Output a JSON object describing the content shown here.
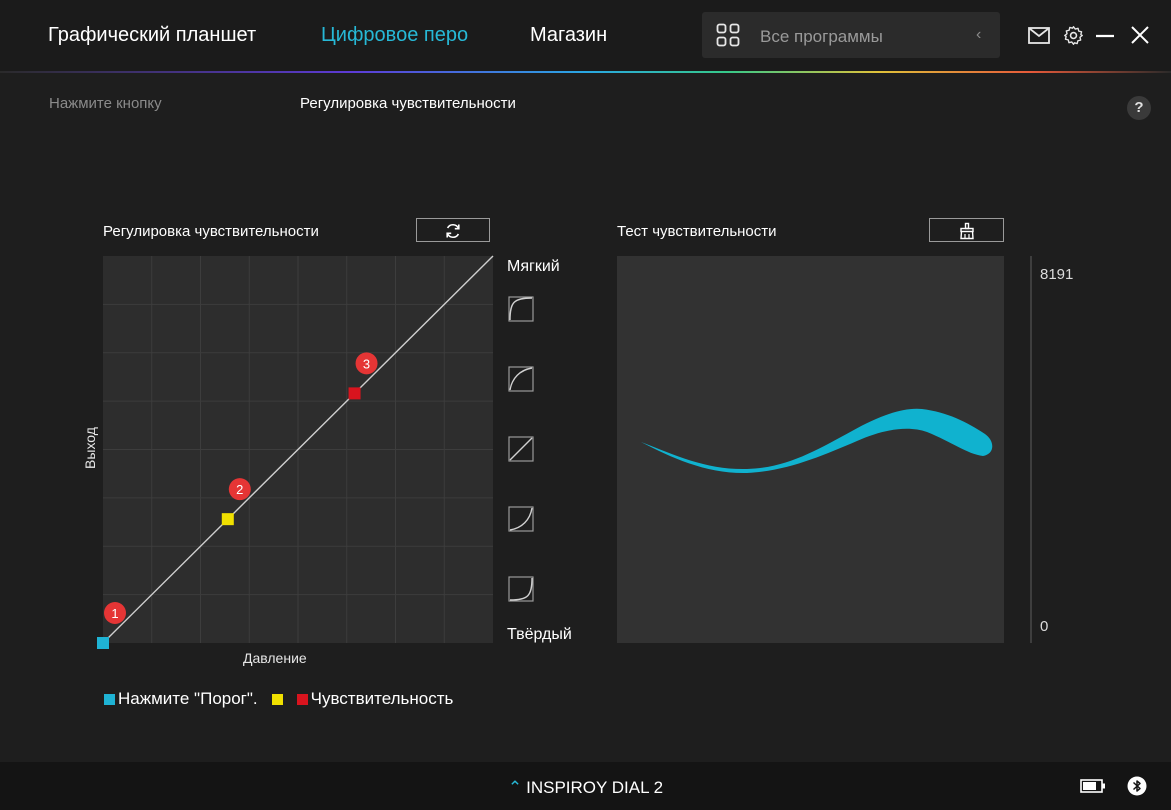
{
  "nav": {
    "tabs": [
      {
        "label": "Графический планшет"
      },
      {
        "label": "Цифровое перо"
      },
      {
        "label": "Магазин"
      }
    ],
    "active_tab": 1,
    "app_selector": {
      "label": "Все программы"
    },
    "accent_color": "#27b8d6"
  },
  "subnav": {
    "tabs": [
      {
        "label": "Нажмите кнопку"
      },
      {
        "label": "Регулировка чувствительности"
      }
    ],
    "active_tab": 1,
    "help_label": "?"
  },
  "sensitivity": {
    "title": "Регулировка чувствительности",
    "reset_icon": "refresh-icon",
    "x_label": "Давление",
    "y_label": "Выход",
    "soft_label": "Мягкий",
    "hard_label": "Твёрдый",
    "curve_presets": [
      "curve-soft-2",
      "curve-soft-1",
      "curve-linear",
      "curve-hard-1",
      "curve-hard-2"
    ],
    "points": [
      {
        "id": "1",
        "x": 0,
        "y": 0,
        "color": "#1fb3d4"
      },
      {
        "id": "2",
        "x": 0.32,
        "y": 0.32,
        "color": "#f0e000"
      },
      {
        "id": "3",
        "x": 0.645,
        "y": 0.645,
        "color": "#d9141e"
      }
    ],
    "legend": [
      {
        "label": "Нажмите \"Порог\".",
        "color": "#1fb3d4"
      },
      {
        "label": "",
        "color": "#f0e000"
      },
      {
        "label": "Чувствительность",
        "color": "#d9141e"
      }
    ]
  },
  "test": {
    "title": "Тест чувствительности",
    "clear_icon": "brush-clear-icon",
    "stroke_color": "#10b2cf",
    "pressure_max": "8191",
    "pressure_min": "0"
  },
  "footer": {
    "device_name": "INSPIROY DIAL 2",
    "battery_icon": "battery-icon",
    "bluetooth_icon": "bluetooth-icon"
  }
}
